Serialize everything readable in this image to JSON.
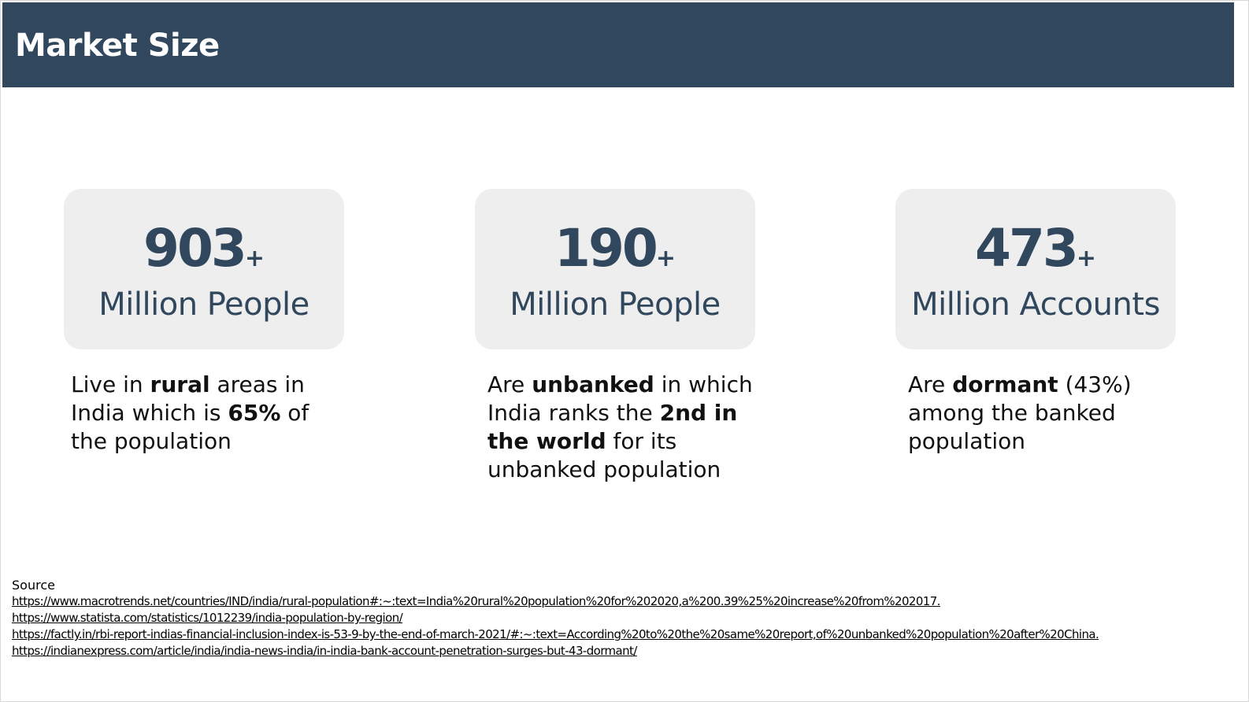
{
  "header": {
    "title": "Market Size"
  },
  "colors": {
    "header_bg": "#31475e",
    "card_bg": "#eeeeee",
    "stat_text": "#31475e"
  },
  "stats": [
    {
      "number": "903",
      "suffix": "+",
      "unit": "Million People",
      "desc": {
        "p1": "Live in ",
        "b1": "rural",
        "p2": " areas in India which is ",
        "b2": "65%",
        "p3": " of the population"
      }
    },
    {
      "number": "190",
      "suffix": "+",
      "unit": "Million People",
      "desc": {
        "p1": "Are ",
        "b1": "unbanked",
        "p2": " in which India ranks the ",
        "b2": "2nd in the world",
        "p3": " for its unbanked population"
      }
    },
    {
      "number": "473",
      "suffix": "+",
      "unit": "Million Accounts",
      "desc": {
        "p1": "Are ",
        "b1": "dormant",
        "p2": " (43%) among the banked population"
      }
    }
  ],
  "sources": {
    "label": "Source",
    "links": [
      {
        "text": "https://www.macrotrends.net/countries/IND/india/rural-population#:~:text=India%20rural%20population%20for%202020,a%200.39%25%20increase%20from%202017",
        "tail": "."
      },
      {
        "text": "https://www.statista.com/statistics/1012239/india-population-by-region/",
        "tail": ""
      },
      {
        "text": "https://factly.in/rbi-report-indias-financial-inclusion-index-is-53-9-by-the-end-of-march-2021/#:~:text=According%20to%20the%20same%20report,of%20unbanked%20population%20after%20China",
        "tail": "."
      },
      {
        "text": "https://indianexpress.com/article/india/india-news-india/in-india-bank-account-penetration-surges-but-43-dormant/",
        "tail": ""
      }
    ]
  }
}
